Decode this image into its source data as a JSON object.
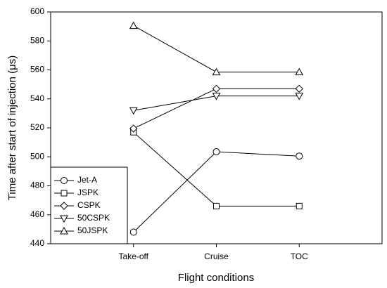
{
  "chart_data": {
    "type": "line",
    "x_label": "Flight conditions",
    "y_label": "Time after start of injection (μs)",
    "categories": [
      "Take-off",
      "Cruise",
      "TOC"
    ],
    "ylim": [
      440,
      600
    ],
    "yticks": [
      440,
      460,
      480,
      500,
      520,
      540,
      560,
      580,
      600
    ],
    "legend": "lower left",
    "grid": false,
    "series": [
      {
        "name": "Jet-A",
        "color": "#000000",
        "marker": "circle",
        "values": [
          448,
          503.5,
          500.5
        ]
      },
      {
        "name": "JSPK",
        "color": "#000000",
        "marker": "square",
        "values": [
          517,
          466,
          466
        ]
      },
      {
        "name": "CSPK",
        "color": "#000000",
        "marker": "diamond",
        "values": [
          519.5,
          547,
          547
        ]
      },
      {
        "name": "50CSPK",
        "color": "#000000",
        "marker": "triangle-down",
        "values": [
          532,
          542,
          542
        ]
      },
      {
        "name": "50JSPK",
        "color": "#000000",
        "marker": "triangle-up",
        "values": [
          590.5,
          558.5,
          558.5
        ]
      }
    ]
  }
}
